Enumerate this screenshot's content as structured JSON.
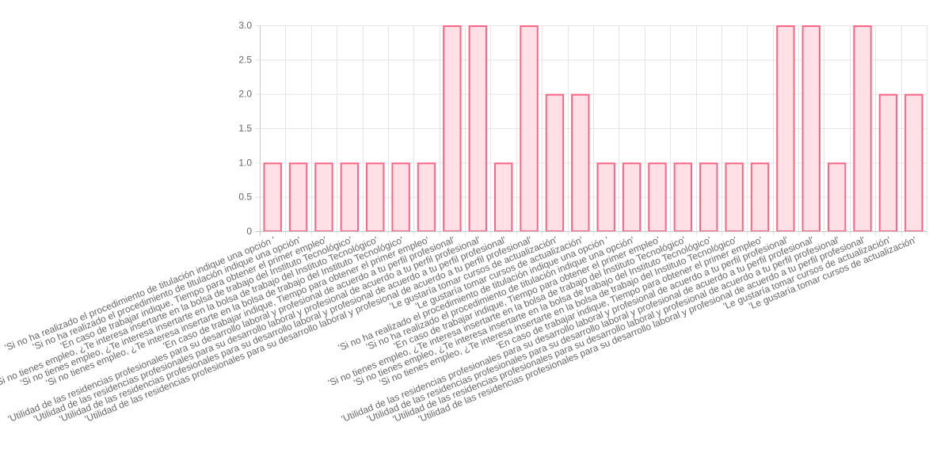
{
  "chart_data": {
    "type": "bar",
    "categories": [
      "'Si no ha realizado el procedimiento de titulación indique una opción '",
      "'Si no ha realizado el procedimiento de titulación indique una opción'",
      "'En caso de trabajar indique, Tiempo para obtener el primer empleo'",
      "'Si no tienes empleo, ¿Te interesa insertarte en la bolsa de trabajo del Instituto Tecnológico'",
      "'Si no tienes empleo, ¿Te interesa insertarte en la bolsa de trabajo del Instituto Tecnológico'",
      "'Si no tienes empleo, ¿Te interesa insertarte en la bolsa de trabajo del Instituto Tecnológico'",
      "'En caso de trabajar indique, Tiempo para obtener el primer empleo'",
      "'Utilidad de las residencias profesionales para su desarrollo laboral y profesional de acuerdo a tu perfil profesional'",
      "'Utilidad de las residencias profesionales para su desarrollo laboral y profesional de acuerdo a tu perfil profesional'",
      "'Utilidad de las residencias profesionales para su desarrollo laboral y profesional de acuerdo a tu perfil profesional'",
      "'Utilidad de las residencias profesionales para su desarrollo laboral y profesional de acuerdo a tu perfil profesional'",
      "'Le gustaría tomar cursos de actualización'",
      "'Le gustaría tomar cursos de actualización'",
      "'Si no ha realizado el procedimiento de titulación indique una opción '",
      "'Si no ha realizado el procedimiento de titulación indique una opción'",
      "'En caso de trabajar indique, Tiempo para obtener el primer empleo'",
      "'Si no tienes empleo, ¿Te interesa insertarte en la bolsa de trabajo del Instituto Tecnológico'",
      "'Si no tienes empleo, ¿Te interesa insertarte en la bolsa de trabajo del Instituto Tecnológico'",
      "'Si no tienes empleo, ¿Te interesa insertarte en la bolsa de trabajo del Instituto Tecnológico'",
      "'En caso de trabajar indique, Tiempo para obtener el primer empleo'",
      "'Utilidad de las residencias profesionales para su desarrollo laboral y profesional de acuerdo a tu perfil profesional'",
      "'Utilidad de las residencias profesionales para su desarrollo laboral y profesional de acuerdo a tu perfil profesional'",
      "'Utilidad de las residencias profesionales para su desarrollo laboral y profesional de acuerdo a tu perfil profesional'",
      "'Utilidad de las residencias profesionales para su desarrollo laboral y profesional de acuerdo a tu perfil profesional'",
      "'Le gustaría tomar cursos de actualización'",
      "'Le gustaría tomar cursos de actualización'"
    ],
    "values": [
      1,
      1,
      1,
      1,
      1,
      1,
      1,
      3,
      3,
      1,
      3,
      2,
      2,
      1,
      1,
      1,
      1,
      1,
      1,
      1,
      3,
      3,
      1,
      3,
      2,
      2
    ],
    "y_ticks": [
      "0",
      "0.5",
      "1.0",
      "1.5",
      "2.0",
      "2.5",
      "3.0"
    ],
    "ylim": [
      0,
      3
    ],
    "title": "",
    "xlabel": "",
    "ylabel": "",
    "grid": true,
    "legend": "none",
    "colors": {
      "bar_fill": "#ffe0e6",
      "bar_stroke": "#ff6384",
      "grid": "#e5e5e5",
      "axis": "#c9c9c9",
      "tick_text": "#666666"
    }
  }
}
